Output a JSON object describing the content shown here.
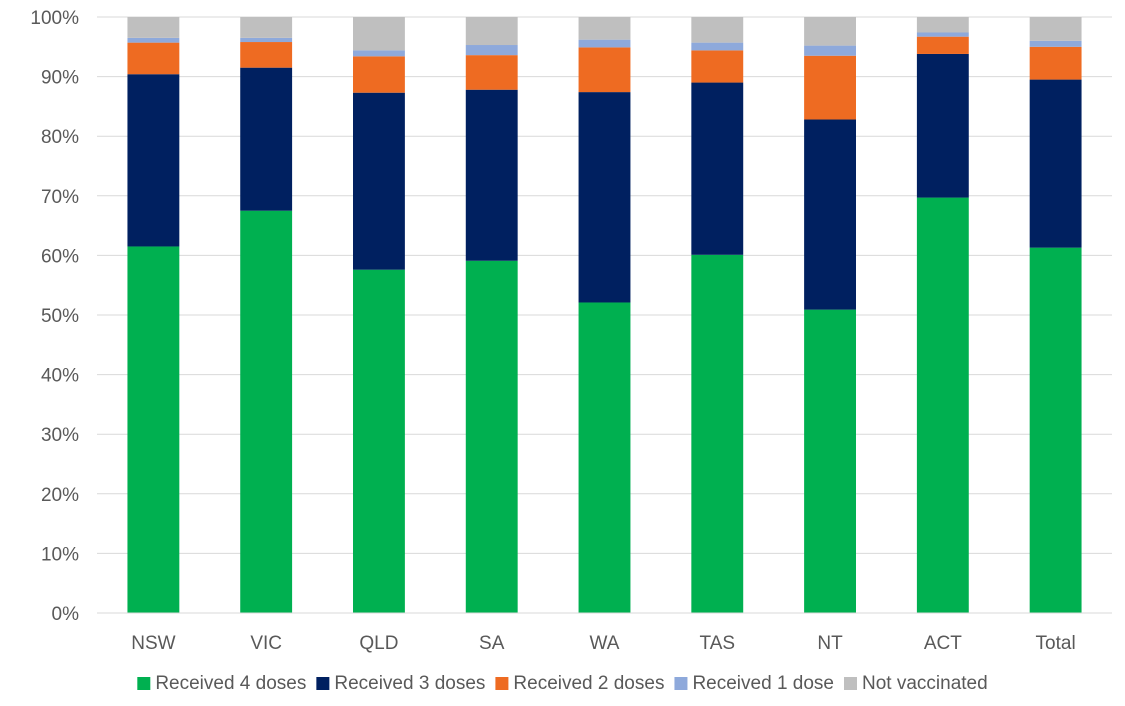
{
  "chart_data": {
    "type": "bar",
    "stacked": true,
    "title": "",
    "xlabel": "",
    "ylabel": "",
    "ylim": [
      0,
      1
    ],
    "y_ticks": [
      "0%",
      "10%",
      "20%",
      "30%",
      "40%",
      "50%",
      "60%",
      "70%",
      "80%",
      "90%",
      "100%"
    ],
    "grid": true,
    "legend_position": "bottom",
    "categories": [
      "NSW",
      "VIC",
      "QLD",
      "SA",
      "WA",
      "TAS",
      "NT",
      "ACT",
      "Total"
    ],
    "series": [
      {
        "name": "Received 4 doses",
        "color": "#00B050",
        "values": [
          0.615,
          0.675,
          0.576,
          0.591,
          0.521,
          0.601,
          0.509,
          0.697,
          0.613
        ]
      },
      {
        "name": "Received 3 doses",
        "color": "#002060",
        "values": [
          0.289,
          0.24,
          0.297,
          0.287,
          0.353,
          0.289,
          0.319,
          0.241,
          0.282
        ]
      },
      {
        "name": "Received 2 doses",
        "color": "#EE6B22",
        "values": [
          0.053,
          0.043,
          0.061,
          0.058,
          0.075,
          0.054,
          0.107,
          0.029,
          0.055
        ]
      },
      {
        "name": "Received 1 dose",
        "color": "#8EA9DB",
        "values": [
          0.008,
          0.007,
          0.01,
          0.017,
          0.013,
          0.013,
          0.017,
          0.007,
          0.01
        ]
      },
      {
        "name": "Not vaccinated",
        "color": "#BFBFBF",
        "values": [
          0.035,
          0.035,
          0.056,
          0.047,
          0.038,
          0.043,
          0.048,
          0.026,
          0.04
        ]
      }
    ]
  }
}
